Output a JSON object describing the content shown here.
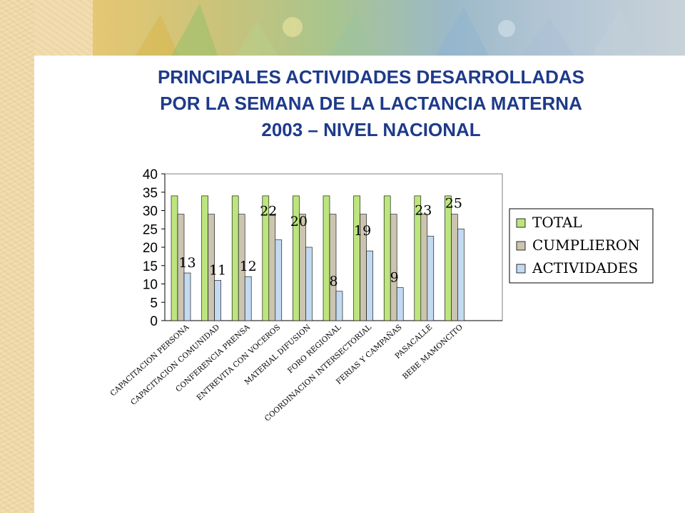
{
  "title_lines": [
    "PRINCIPALES  ACTIVIDADES DESARROLLADAS",
    "POR LA SEMANA DE LA LACTANCIA MATERNA",
    "2003 – NIVEL NACIONAL"
  ],
  "colors": {
    "title": "#1e3a8a",
    "total": "#bde57e",
    "cumplieron": "#cbc4b0",
    "actividades": "#c3daf0",
    "stroke": "#000000"
  },
  "chart_data": {
    "type": "bar",
    "categories": [
      "CAPACITACION PERSONA",
      "CAPACITACION COMUNIDAD",
      "CONFERENCIA PRENSA",
      "ENTREVITA CON VOCEROS",
      "MATERIAL DIFUSION",
      "FORO REGIONAL",
      "COORDINACION INTERSECTORIAL",
      "FERIAS Y CAMPAÑAS",
      "PASACALLE",
      "BEBE MAMONCITO"
    ],
    "series": [
      {
        "name": "TOTAL",
        "values": [
          34,
          34,
          34,
          34,
          34,
          34,
          34,
          34,
          34,
          34
        ]
      },
      {
        "name": "CUMPLIERON",
        "values": [
          29,
          29,
          29,
          29,
          29,
          29,
          29,
          29,
          29,
          29
        ]
      },
      {
        "name": "ACTIVIDADES",
        "values": [
          13,
          11,
          12,
          22,
          20,
          8,
          19,
          9,
          23,
          25
        ]
      }
    ],
    "data_labels": [
      "13",
      "11",
      "12",
      "22",
      "20",
      "8",
      "19",
      "9",
      "23",
      "25"
    ],
    "y_ticks": [
      "0",
      "5",
      "10",
      "15",
      "20",
      "25",
      "30",
      "35",
      "40"
    ],
    "ylim": [
      0,
      40
    ],
    "grid": false,
    "legend_position": "right",
    "title": "PRINCIPALES  ACTIVIDADES DESARROLLADAS POR LA SEMANA DE LA LACTANCIA MATERNA 2003 – NIVEL NACIONAL"
  }
}
